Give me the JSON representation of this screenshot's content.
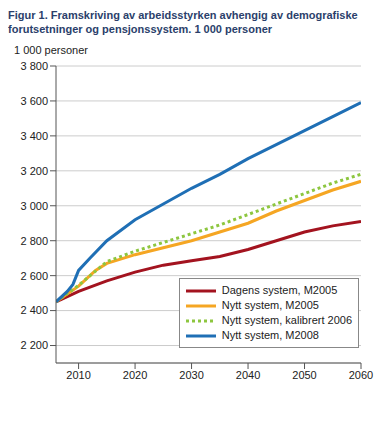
{
  "chart_data": {
    "type": "line",
    "title": "Figur 1. Framskriving av arbeidsstyrken avhengig av demografiske forutsetninger og pensjonssystem. 1 000 personer",
    "y_label": "1 000 personer",
    "x": [
      2006,
      2008,
      2009,
      2010,
      2012,
      2013,
      2015,
      2020,
      2025,
      2030,
      2035,
      2040,
      2045,
      2050,
      2055,
      2060
    ],
    "series": [
      {
        "name": "Dagens system, M2005",
        "color": "#a3131f",
        "line_style": "solid",
        "values": [
          2450,
          null,
          null,
          2510,
          null,
          null,
          2570,
          2620,
          2660,
          2685,
          2710,
          2750,
          2800,
          2850,
          2885,
          2910
        ]
      },
      {
        "name": "Nytt system, M2005",
        "color": "#f5a623",
        "line_style": "solid",
        "values": [
          2450,
          null,
          null,
          2540,
          null,
          2630,
          2670,
          2720,
          2760,
          2800,
          2850,
          2900,
          2970,
          3030,
          3090,
          3140
        ]
      },
      {
        "name": "Nytt system, kalibrert 2006",
        "color": "#8dc63f",
        "line_style": "dotted",
        "values": [
          2450,
          null,
          null,
          2545,
          null,
          null,
          2680,
          2740,
          2790,
          2840,
          2890,
          2950,
          3010,
          3070,
          3130,
          3180
        ]
      },
      {
        "name": "Nytt system, M2008",
        "color": "#1f6fb5",
        "line_style": "solid",
        "values": [
          2450,
          2510,
          2550,
          2630,
          2700,
          null,
          2800,
          2920,
          3010,
          3100,
          3180,
          3270,
          3350,
          3430,
          3510,
          3590
        ]
      }
    ],
    "xlim": [
      2006,
      2060
    ],
    "xticks": [
      2010,
      2020,
      2030,
      2040,
      2050,
      2060
    ],
    "ylim": [
      2100,
      3800
    ],
    "yticks": [
      {
        "value": 2200,
        "label": "2 200"
      },
      {
        "value": 2400,
        "label": "2 400"
      },
      {
        "value": 2600,
        "label": "2 600"
      },
      {
        "value": 2800,
        "label": "2 800"
      },
      {
        "value": 3000,
        "label": "3 000"
      },
      {
        "value": 3200,
        "label": "3 200"
      },
      {
        "value": 3400,
        "label": "3 400"
      },
      {
        "value": 3600,
        "label": "3 600"
      },
      {
        "value": 3800,
        "label": "3 800"
      }
    ],
    "grid": true,
    "legend": "bottom-right"
  }
}
